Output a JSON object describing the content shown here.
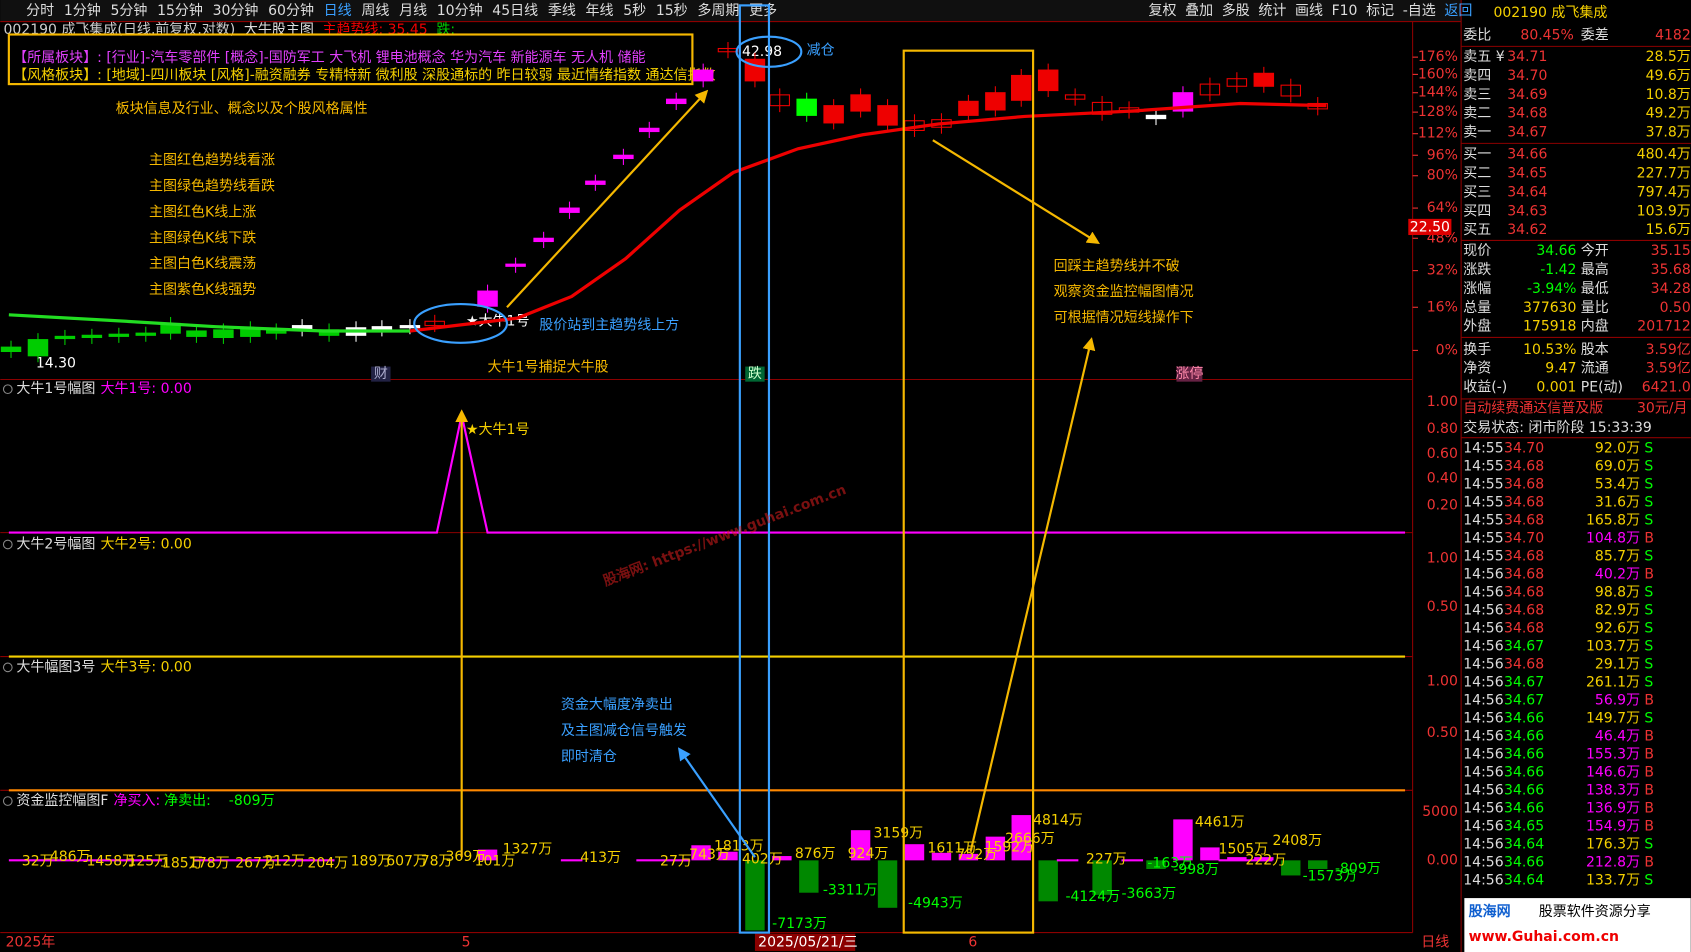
{
  "toolbar": {
    "periods": [
      "分时",
      "1分钟",
      "5分钟",
      "15分钟",
      "30分钟",
      "60分钟",
      "日线",
      "周线",
      "月线",
      "10分钟",
      "45日线",
      "季线",
      "年线",
      "5秒",
      "15秒",
      "多周期",
      "更多"
    ],
    "right": [
      "复权",
      "叠加",
      "多股",
      "统计",
      "画线",
      "F10",
      "标记",
      "-自选",
      "返回"
    ]
  },
  "header": {
    "title": "002190 成飞集成(日线,前复权,对数)",
    "indicator": "大牛股主图",
    "trend": "主趋势线: 35.45",
    "fall": "跌:"
  },
  "sector_box": {
    "line1": "【所属板块】: [行业]-汽车零部件 [概念]-国防军工 大飞机 锂电池概念 华为汽车 新能源车 无人机 储能",
    "line2": "【风格板块】: [地域]-四川板块 [风格]-融资融券 专精特新 微利股 深股通标的 昨日较弱 最近情绪指数 通达信指数"
  },
  "annotations": {
    "sector": "板块信息及行业、概念以及个股风格属性",
    "legend": [
      "主图红色趋势线看涨",
      "主图绿色趋势线看跌",
      "主图红色K线上涨",
      "主图绿色K线下跌",
      "主图白色K线震荡",
      "主图紫色K线强势"
    ],
    "above_trend": "股价站到主趋势线上方",
    "bull": "大牛1号捕捉大牛股",
    "sell": [
      "资金大幅度净卖出",
      "及主图减仓信号触发",
      "即时清仓"
    ],
    "pullback": [
      "回踩主趋势线并不破",
      "观察资金监控幅图情况",
      "可根据情况短线操作下"
    ],
    "reduce": "减仓"
  },
  "main_chart": {
    "axis": [
      "176%",
      "160%",
      "144%",
      "128%",
      "112%",
      "96%",
      "80%",
      "64%",
      "48%",
      "32%",
      "16%",
      "0%"
    ],
    "price_tag": "22.50",
    "high": "42.98",
    "low": "14.30",
    "signal": "★大牛1号",
    "markers": [
      "财",
      "跌",
      "涨停"
    ]
  },
  "panels": [
    {
      "title": "大牛1号幅图",
      "value": "大牛1号: 0.00",
      "ticks": [
        "1.00",
        "0.80",
        "0.60",
        "0.40",
        "0.20"
      ],
      "signal": "★大牛1号"
    },
    {
      "title": "大牛2号幅图",
      "value": "大牛2号: 0.00",
      "ticks": [
        "1.00",
        "0.50"
      ]
    },
    {
      "title": "大牛幅图3号",
      "value": "大牛3号: 0.00",
      "ticks": [
        "1.00",
        "0.50"
      ]
    }
  ],
  "flow_panel": {
    "title": "资金监控幅图F",
    "buy": "净买入:",
    "sell": "净卖出:",
    "value": "-809万",
    "ticks": [
      "5000",
      "0.00"
    ],
    "labels": [
      "32万",
      "486万",
      "1458万",
      "125万",
      "185万",
      "178万",
      "267万",
      "212万",
      "204万",
      "189万",
      "607万",
      "78万",
      "369万",
      "101万",
      "1327万",
      "413万",
      "27万",
      "743万",
      "1813万",
      "402万",
      "-7173万",
      "876万",
      "-3311万",
      "924万",
      "3159万",
      "-4943万",
      "1611万",
      "752万",
      "1592万",
      "2666万",
      "4814万",
      "227万",
      "-4124万",
      "-3663万",
      "-163万",
      "-998万",
      "4461万",
      "1505万",
      "222万",
      "2408万",
      "-1573万",
      "-809万"
    ]
  },
  "x_axis": [
    "2025年",
    "5",
    "2025/05/21/三",
    "6",
    "日线"
  ],
  "quote": {
    "title": "002190 成飞集成",
    "ratio": [
      "委比",
      "80.45%",
      "委差",
      "4182"
    ],
    "book": [
      [
        "卖五 ¥",
        "34.71",
        "28.5万"
      ],
      [
        "卖四",
        "34.70",
        "49.6万"
      ],
      [
        "卖三",
        "34.69",
        "10.8万"
      ],
      [
        "卖二",
        "34.68",
        "49.2万"
      ],
      [
        "卖一",
        "34.67",
        "37.8万"
      ],
      [
        "买一",
        "34.66",
        "480.4万"
      ],
      [
        "买二",
        "34.65",
        "227.7万"
      ],
      [
        "买三",
        "34.64",
        "797.4万"
      ],
      [
        "买四",
        "34.63",
        "103.9万"
      ],
      [
        "买五",
        "34.62",
        "15.6万"
      ]
    ],
    "stats": [
      [
        "现价",
        "34.66",
        "今开",
        "35.15"
      ],
      [
        "涨跌",
        "-1.42",
        "最高",
        "35.68"
      ],
      [
        "涨幅",
        "-3.94%",
        "最低",
        "34.28"
      ],
      [
        "总量",
        "377630",
        "量比",
        "0.50"
      ],
      [
        "外盘",
        "175918",
        "内盘",
        "201712"
      ],
      [
        "换手",
        "10.53%",
        "股本",
        "3.59亿"
      ],
      [
        "净资",
        "9.47",
        "流通",
        "3.59亿"
      ],
      [
        "收益(-)",
        "0.001",
        "PE(动)",
        "6421.0"
      ]
    ],
    "ad": [
      "自动续费通达信普及版",
      "30元/月"
    ],
    "status": "交易状态: 闭市阶段 15:33:39"
  },
  "trades": [
    [
      "14:55",
      "34.70",
      "92.0万",
      "S"
    ],
    [
      "14:55",
      "34.68",
      "69.0万",
      "S"
    ],
    [
      "14:55",
      "34.68",
      "53.4万",
      "S"
    ],
    [
      "14:55",
      "34.68",
      "31.6万",
      "S"
    ],
    [
      "14:55",
      "34.68",
      "165.8万",
      "S"
    ],
    [
      "14:55",
      "34.70",
      "104.8万",
      "B"
    ],
    [
      "14:55",
      "34.68",
      "85.7万",
      "S"
    ],
    [
      "14:56",
      "34.68",
      "40.2万",
      "B"
    ],
    [
      "14:56",
      "34.68",
      "98.8万",
      "S"
    ],
    [
      "14:56",
      "34.68",
      "82.9万",
      "S"
    ],
    [
      "14:56",
      "34.68",
      "92.6万",
      "S"
    ],
    [
      "14:56",
      "34.67",
      "103.7万",
      "S"
    ],
    [
      "14:56",
      "34.68",
      "29.1万",
      "S"
    ],
    [
      "14:56",
      "34.67",
      "261.1万",
      "S"
    ],
    [
      "14:56",
      "34.67",
      "56.9万",
      "B"
    ],
    [
      "14:56",
      "34.66",
      "149.7万",
      "S"
    ],
    [
      "14:56",
      "34.66",
      "46.4万",
      "B"
    ],
    [
      "14:56",
      "34.66",
      "155.3万",
      "B"
    ],
    [
      "14:56",
      "34.66",
      "146.6万",
      "B"
    ],
    [
      "14:56",
      "34.66",
      "138.3万",
      "B"
    ],
    [
      "14:56",
      "34.66",
      "136.9万",
      "B"
    ],
    [
      "14:56",
      "34.65",
      "154.9万",
      "B"
    ],
    [
      "14:56",
      "34.64",
      "176.3万",
      "S"
    ],
    [
      "14:56",
      "34.66",
      "212.8万",
      "B"
    ],
    [
      "14:56",
      "34.64",
      "133.7万",
      "S"
    ]
  ],
  "watermark": "股海网: https://www.guhai.com.cn",
  "logo": {
    "name": "股海网",
    "slogan": "股票软件资源分享",
    "url": "www.Guhai.com.cn"
  }
}
